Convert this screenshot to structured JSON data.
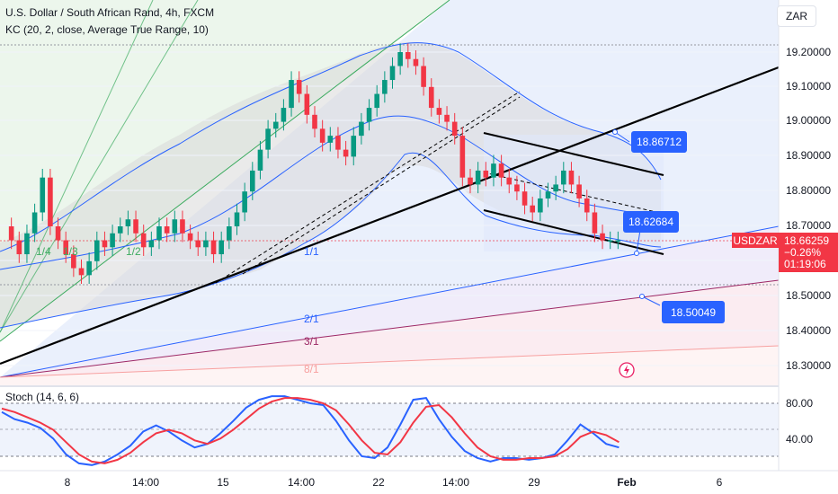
{
  "header": {
    "title": "U.S. Dollar / South African Rand, 4h, FXCM",
    "indicator": "KC (20, 2, close, Average True Range, 10)",
    "currency": "ZAR"
  },
  "price_tag": {
    "symbol": "USDZAR",
    "price": "18.66259",
    "change": "−0.26%",
    "countdown": "01:19:06"
  },
  "annotations": {
    "callout_upper": "18.86712",
    "callout_mid": "18.62684",
    "callout_lower": "18.50049",
    "fan_labels": [
      "1/4",
      "1/3",
      "1/2",
      "1/1",
      "2/1",
      "3/1",
      "8/1"
    ]
  },
  "stoch_label": "Stoch (14, 6, 6)",
  "chart_data": [
    {
      "type": "candlestick",
      "title": "U.S. Dollar / South African Rand, 4h, FXCM",
      "ylim": [
        18.24,
        19.28
      ],
      "yticks": [
        "19.20000",
        "19.10000",
        "19.00000",
        "18.90000",
        "18.80000",
        "18.70000",
        "18.60000",
        "18.50000",
        "18.40000",
        "18.30000"
      ],
      "xticks": [
        "8",
        "14:00",
        "15",
        "14:00",
        "22",
        "14:00",
        "29",
        "Feb",
        "6",
        "14:00"
      ],
      "series": [
        {
          "name": "USDZAR",
          "close": [
            18.7,
            18.66,
            18.62,
            18.68,
            18.74,
            18.84,
            18.7,
            18.66,
            18.62,
            18.58,
            18.56,
            18.6,
            18.66,
            18.64,
            18.68,
            18.7,
            18.72,
            18.68,
            18.64,
            18.66,
            18.7,
            18.68,
            18.72,
            18.68,
            18.66,
            18.64,
            18.66,
            18.62,
            18.66,
            18.7,
            18.74,
            18.8,
            18.86,
            18.92,
            18.98,
            19.0,
            19.04,
            19.12,
            19.08,
            19.02,
            18.98,
            18.94,
            18.96,
            18.92,
            18.9,
            18.96,
            19.0,
            19.04,
            19.08,
            19.12,
            19.16,
            19.2,
            19.18,
            19.16,
            19.1,
            19.04,
            19.02,
            19.0,
            18.96,
            18.84,
            18.82,
            18.86,
            18.84,
            18.88,
            18.84,
            18.82,
            18.8,
            18.76,
            18.74,
            18.78,
            18.8,
            18.82,
            18.86,
            18.82,
            18.78,
            18.74,
            18.68,
            18.66,
            18.66,
            18.66
          ]
        }
      ]
    },
    {
      "type": "line",
      "title": "Stoch (14, 6, 6)",
      "ylim": [
        0,
        100
      ],
      "yticks": [
        "80.00",
        "40.00"
      ],
      "series": [
        {
          "name": "%K",
          "values": [
            70,
            62,
            58,
            52,
            40,
            22,
            12,
            10,
            14,
            22,
            32,
            48,
            55,
            48,
            38,
            30,
            34,
            46,
            60,
            75,
            84,
            88,
            88,
            84,
            80,
            78,
            60,
            38,
            20,
            18,
            30,
            56,
            84,
            86,
            62,
            42,
            26,
            18,
            14,
            18,
            18,
            16,
            18,
            22,
            38,
            56,
            46,
            34,
            30
          ]
        },
        {
          "name": "%D",
          "values": [
            74,
            70,
            64,
            58,
            50,
            36,
            22,
            14,
            12,
            16,
            24,
            36,
            46,
            50,
            46,
            38,
            34,
            40,
            50,
            62,
            74,
            82,
            86,
            86,
            84,
            80,
            72,
            56,
            38,
            24,
            22,
            36,
            58,
            76,
            78,
            64,
            46,
            30,
            20,
            16,
            16,
            18,
            18,
            20,
            28,
            42,
            48,
            44,
            36
          ]
        }
      ]
    }
  ]
}
